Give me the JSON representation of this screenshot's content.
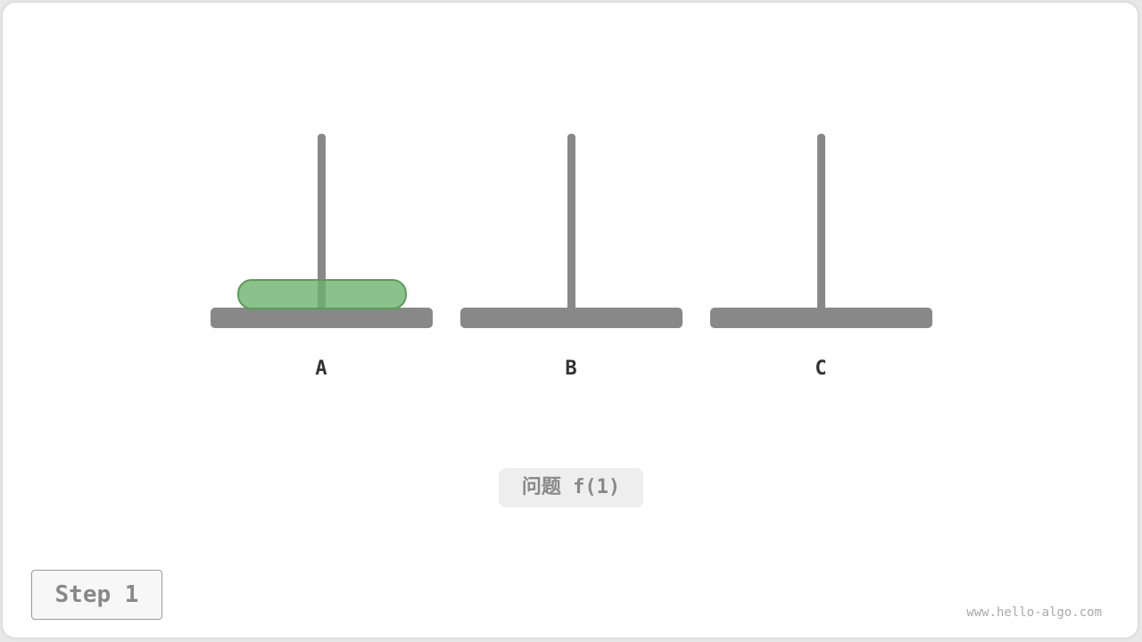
{
  "rods": [
    {
      "label": "A"
    },
    {
      "label": "B"
    },
    {
      "label": "C"
    }
  ],
  "disks": [
    {
      "rod": "A",
      "color": "#6eb16e"
    }
  ],
  "caption": "问题 f(1)",
  "step": "Step 1",
  "watermark": "www.hello-algo.com"
}
